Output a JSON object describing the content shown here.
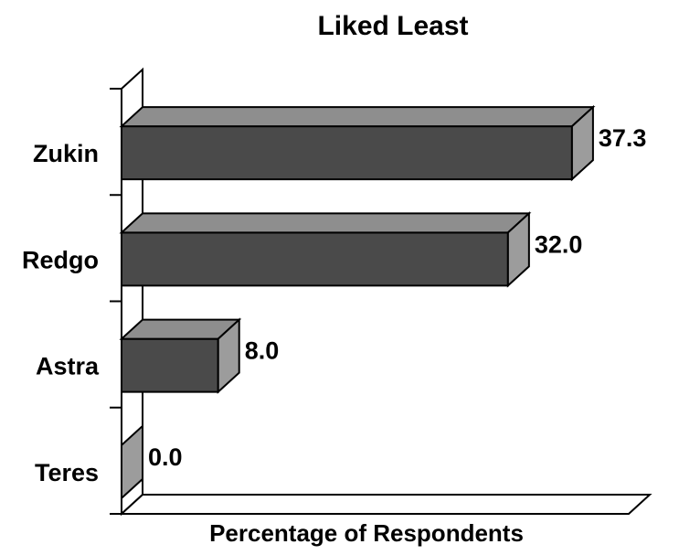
{
  "chart_data": {
    "type": "bar",
    "orientation": "horizontal",
    "style": "3d",
    "title": "Liked Least",
    "xlabel": "Percentage of Respondents",
    "ylabel": "",
    "categories": [
      "Zukin",
      "Redgo",
      "Astra",
      "Teres"
    ],
    "values": [
      37.3,
      32.0,
      8.0,
      0.0
    ],
    "value_labels": [
      "37.3",
      "32.0",
      "8.0",
      "0.0"
    ],
    "xlim": [
      0,
      42
    ],
    "grid": false,
    "legend": "none",
    "colors": {
      "bar_front": "#4a4a4a",
      "bar_top": "#8e8e8e",
      "bar_side": "#9c9c9c",
      "outline": "#000000"
    }
  }
}
